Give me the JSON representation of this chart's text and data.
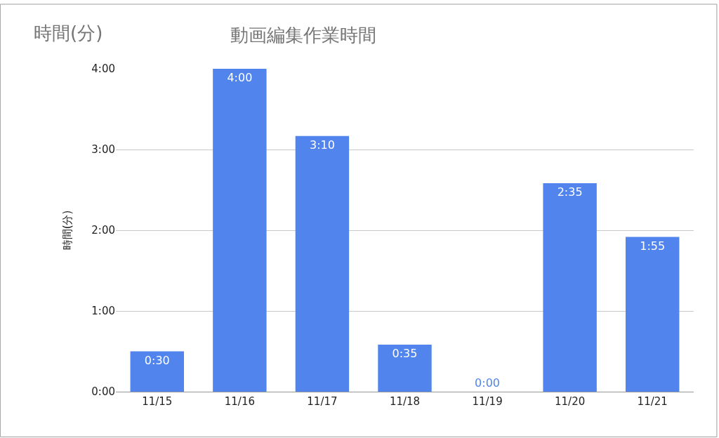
{
  "chart_data": {
    "type": "bar",
    "title": "動画編集作業時間",
    "ylabel": "時間(分)",
    "annotations": [
      "時間(分)"
    ],
    "categories": [
      "11/15",
      "11/16",
      "11/17",
      "11/18",
      "11/19",
      "11/20",
      "11/21"
    ],
    "values": [
      30,
      240,
      190,
      35,
      0,
      155,
      115
    ],
    "value_labels": [
      "0:30",
      "4:00",
      "3:10",
      "0:35",
      "0:00",
      "2:35",
      "1:55"
    ],
    "color": "#5185ed",
    "ylim": [
      0,
      240
    ],
    "yticks": [
      {
        "value": 0,
        "label": "0:00"
      },
      {
        "value": 60,
        "label": "1:00"
      },
      {
        "value": 120,
        "label": "2:00"
      },
      {
        "value": 180,
        "label": "3:00"
      },
      {
        "value": 240,
        "label": "4:00"
      }
    ],
    "grid": "y"
  }
}
